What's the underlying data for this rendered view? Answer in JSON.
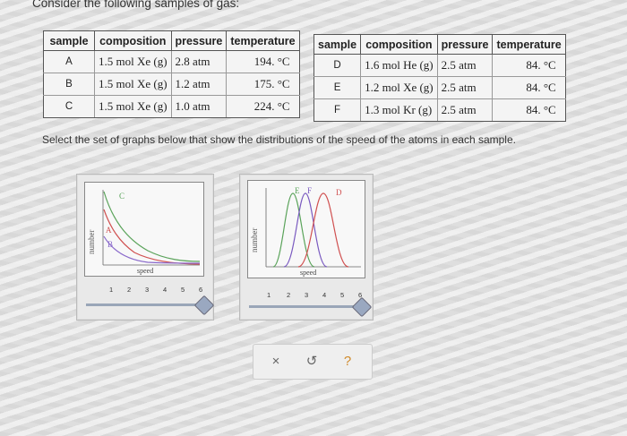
{
  "question": "Consider the following samples of gas:",
  "table_headers": [
    "sample",
    "composition",
    "pressure",
    "temperature"
  ],
  "table_left": [
    {
      "sample": "A",
      "composition": "1.5 mol Xe (g)",
      "pressure": "2.8 atm",
      "temperature": "194. °C"
    },
    {
      "sample": "B",
      "composition": "1.5 mol Xe (g)",
      "pressure": "1.2 atm",
      "temperature": "175. °C"
    },
    {
      "sample": "C",
      "composition": "1.5 mol Xe (g)",
      "pressure": "1.0 atm",
      "temperature": "224. °C"
    }
  ],
  "table_right": [
    {
      "sample": "D",
      "composition": "1.6 mol He (g)",
      "pressure": "2.5 atm",
      "temperature": "84. °C"
    },
    {
      "sample": "E",
      "composition": "1.2 mol Xe (g)",
      "pressure": "2.5 atm",
      "temperature": "84. °C"
    },
    {
      "sample": "F",
      "composition": "1.3 mol Kr (g)",
      "pressure": "2.5 atm",
      "temperature": "84. °C"
    }
  ],
  "instruction": "Select the set of graphs below that show the distributions of the speed of the atoms in each sample.",
  "graph1": {
    "ylabel": "number",
    "xlabel": "speed",
    "curve_labels": [
      "C",
      "A",
      "B"
    ],
    "ticks": [
      "1",
      "2",
      "3",
      "4",
      "5",
      "6"
    ],
    "colors": {
      "C": "#5aa35a",
      "A": "#d05050",
      "B": "#8a6acb"
    }
  },
  "graph2": {
    "ylabel": "number",
    "xlabel": "speed",
    "curve_labels": [
      "E",
      "F",
      "D"
    ],
    "ticks": [
      "1",
      "2",
      "3",
      "4",
      "5",
      "6"
    ],
    "colors": {
      "E": "#5aa35a",
      "F": "#7a5ac0",
      "D": "#d05050"
    }
  },
  "actions": {
    "clear": "×",
    "undo": "↺",
    "help": "?"
  },
  "action_colors": {
    "clear": "#666666",
    "undo": "#666666",
    "help": "#d08a2a"
  }
}
